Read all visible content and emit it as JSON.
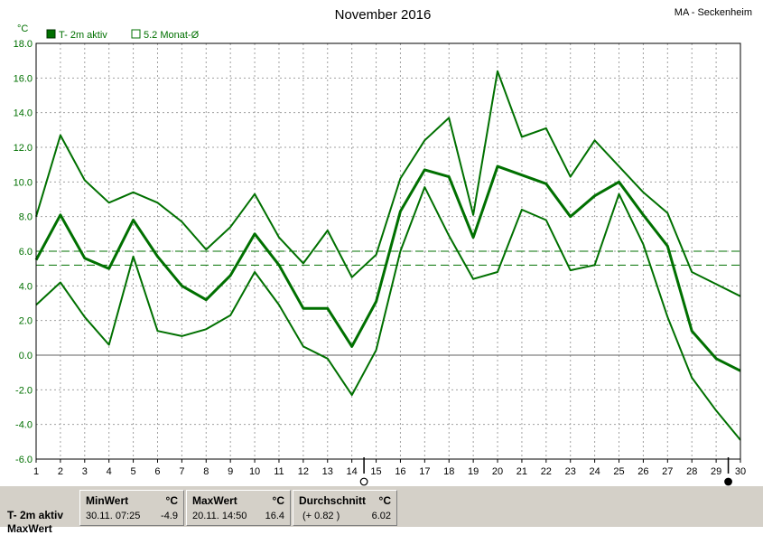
{
  "chart_data": {
    "type": "line",
    "title": "November 2016",
    "station": "MA - Seckenheim",
    "ylabel": "°C",
    "ylim": [
      -6.0,
      18.0
    ],
    "ytick_step": 2.0,
    "x": [
      1,
      2,
      3,
      4,
      5,
      6,
      7,
      8,
      9,
      10,
      11,
      12,
      13,
      14,
      15,
      16,
      17,
      18,
      19,
      20,
      21,
      22,
      23,
      24,
      25,
      26,
      27,
      28,
      29,
      30
    ],
    "grid": true,
    "legend": [
      {
        "label": "T- 2m aktiv",
        "style": "filled-square"
      },
      {
        "label": "5.2 Monat-Ø",
        "style": "open-square"
      }
    ],
    "series": [
      {
        "name": "T- 2m aktiv",
        "role": "mean",
        "color": "#007000",
        "values": [
          5.5,
          8.1,
          5.6,
          5.0,
          7.8,
          5.7,
          4.0,
          3.2,
          4.6,
          7.0,
          5.2,
          2.7,
          2.7,
          0.5,
          3.1,
          8.3,
          10.7,
          10.3,
          6.8,
          10.9,
          10.4,
          9.9,
          8.0,
          9.2,
          10.0,
          8.1,
          6.3,
          1.4,
          -0.2,
          -0.9
        ]
      },
      {
        "role": "max",
        "color": "#007000",
        "values": [
          8.0,
          12.7,
          10.1,
          8.8,
          9.4,
          8.8,
          7.7,
          6.1,
          7.4,
          9.3,
          6.8,
          5.3,
          7.2,
          4.5,
          5.8,
          10.2,
          12.4,
          13.7,
          8.1,
          16.4,
          12.6,
          13.1,
          10.3,
          12.4,
          10.9,
          9.4,
          8.2,
          4.8,
          4.1,
          3.4
        ]
      },
      {
        "role": "min",
        "color": "#007000",
        "values": [
          2.9,
          4.2,
          2.2,
          0.6,
          5.7,
          1.4,
          1.1,
          1.5,
          2.3,
          4.8,
          2.9,
          0.5,
          -0.2,
          -2.3,
          0.3,
          6.0,
          9.7,
          6.9,
          4.4,
          4.8,
          8.4,
          7.8,
          4.9,
          5.2,
          9.3,
          6.4,
          2.2,
          -1.3,
          -3.2,
          -4.9
        ]
      }
    ],
    "reference_lines": [
      {
        "label": "5.2 Monat-Ø",
        "value": 5.2
      },
      {
        "value": 6.0
      }
    ],
    "moon_phases": [
      {
        "day": 14,
        "phase": "full-moon"
      },
      {
        "day": 29,
        "phase": "new-moon"
      }
    ]
  },
  "stats": {
    "row_label": "T- 2m aktiv",
    "row_label_2": "MaxWert",
    "unit": "°C",
    "min": {
      "header": "MinWert",
      "when": "30.11.  07:25",
      "value": "-4.9"
    },
    "max": {
      "header": "MaxWert",
      "when": "20.11.  14:50",
      "value": "16.4"
    },
    "avg": {
      "header": "Durchschnitt",
      "when": "(+ 0.82 )",
      "value": "6.02"
    }
  }
}
